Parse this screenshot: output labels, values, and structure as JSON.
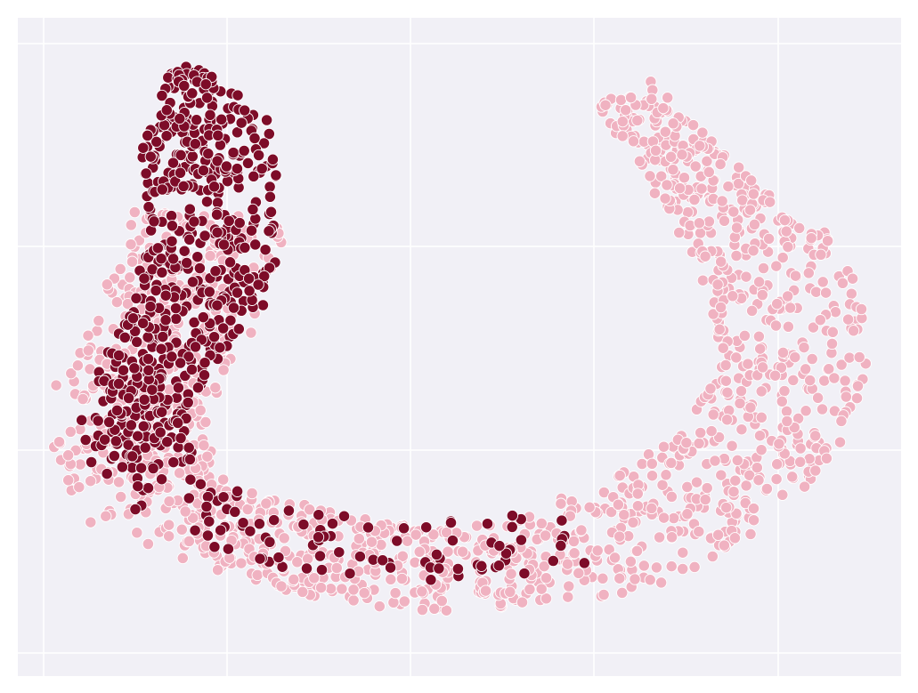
{
  "chart_data": {
    "type": "scatter",
    "title": "",
    "xlabel": "",
    "ylabel": "",
    "xlim": [
      0,
      1
    ],
    "ylim": [
      0,
      1
    ],
    "grid": true,
    "legend": "none",
    "colors": {
      "background": "#f1f0f6",
      "grid": "#ffffff",
      "point_edge": "#ffffff",
      "series_light": "#f0b2c1",
      "series_dark": "#7d0c28"
    },
    "series": [
      {
        "color_key": "series_light",
        "n_points": 1500,
        "shape": "u-shaped manifold: left lobe, bottom arc, right arm",
        "path": [
          [
            0.22,
            0.7
          ],
          [
            0.2,
            0.6
          ],
          [
            0.16,
            0.5
          ],
          [
            0.12,
            0.4
          ],
          [
            0.14,
            0.3
          ],
          [
            0.2,
            0.24
          ],
          [
            0.3,
            0.2
          ],
          [
            0.4,
            0.17
          ],
          [
            0.5,
            0.16
          ],
          [
            0.6,
            0.18
          ],
          [
            0.7,
            0.22
          ],
          [
            0.8,
            0.3
          ],
          [
            0.86,
            0.4
          ],
          [
            0.88,
            0.5
          ],
          [
            0.86,
            0.6
          ],
          [
            0.8,
            0.7
          ],
          [
            0.74,
            0.8
          ],
          [
            0.69,
            0.88
          ]
        ]
      },
      {
        "color_key": "series_dark",
        "n_points": 720,
        "shape": "dense teardrop in upper left plus sparse points along bottom arc",
        "path": [
          [
            0.19,
            0.92
          ],
          [
            0.21,
            0.84
          ],
          [
            0.22,
            0.74
          ],
          [
            0.22,
            0.64
          ],
          [
            0.2,
            0.56
          ],
          [
            0.16,
            0.48
          ],
          [
            0.13,
            0.4
          ],
          [
            0.14,
            0.32
          ],
          [
            0.18,
            0.26
          ],
          [
            0.26,
            0.22
          ],
          [
            0.36,
            0.2
          ],
          [
            0.46,
            0.19
          ],
          [
            0.56,
            0.2
          ],
          [
            0.63,
            0.21
          ]
        ]
      }
    ]
  }
}
